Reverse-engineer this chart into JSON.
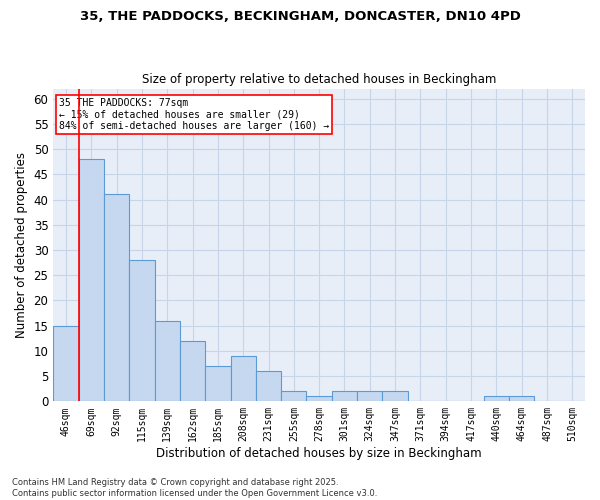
{
  "title_line1": "35, THE PADDOCKS, BECKINGHAM, DONCASTER, DN10 4PD",
  "title_line2": "Size of property relative to detached houses in Beckingham",
  "xlabel": "Distribution of detached houses by size in Beckingham",
  "ylabel": "Number of detached properties",
  "categories": [
    "46sqm",
    "69sqm",
    "92sqm",
    "115sqm",
    "139sqm",
    "162sqm",
    "185sqm",
    "208sqm",
    "231sqm",
    "255sqm",
    "278sqm",
    "301sqm",
    "324sqm",
    "347sqm",
    "371sqm",
    "394sqm",
    "417sqm",
    "440sqm",
    "464sqm",
    "487sqm",
    "510sqm"
  ],
  "values": [
    15,
    48,
    41,
    28,
    16,
    12,
    7,
    9,
    6,
    2,
    1,
    2,
    2,
    2,
    0,
    0,
    0,
    1,
    1,
    0,
    0
  ],
  "bar_color": "#c5d8f0",
  "bar_edge_color": "#5b9bd5",
  "grid_color": "#c8d4e8",
  "background_color": "#e8eef8",
  "annotation_text": "35 THE PADDOCKS: 77sqm\n← 15% of detached houses are smaller (29)\n84% of semi-detached houses are larger (160) →",
  "redline_x": 0.5,
  "ylim": [
    0,
    62
  ],
  "yticks": [
    0,
    5,
    10,
    15,
    20,
    25,
    30,
    35,
    40,
    45,
    50,
    55,
    60
  ],
  "footer_line1": "Contains HM Land Registry data © Crown copyright and database right 2025.",
  "footer_line2": "Contains public sector information licensed under the Open Government Licence v3.0."
}
